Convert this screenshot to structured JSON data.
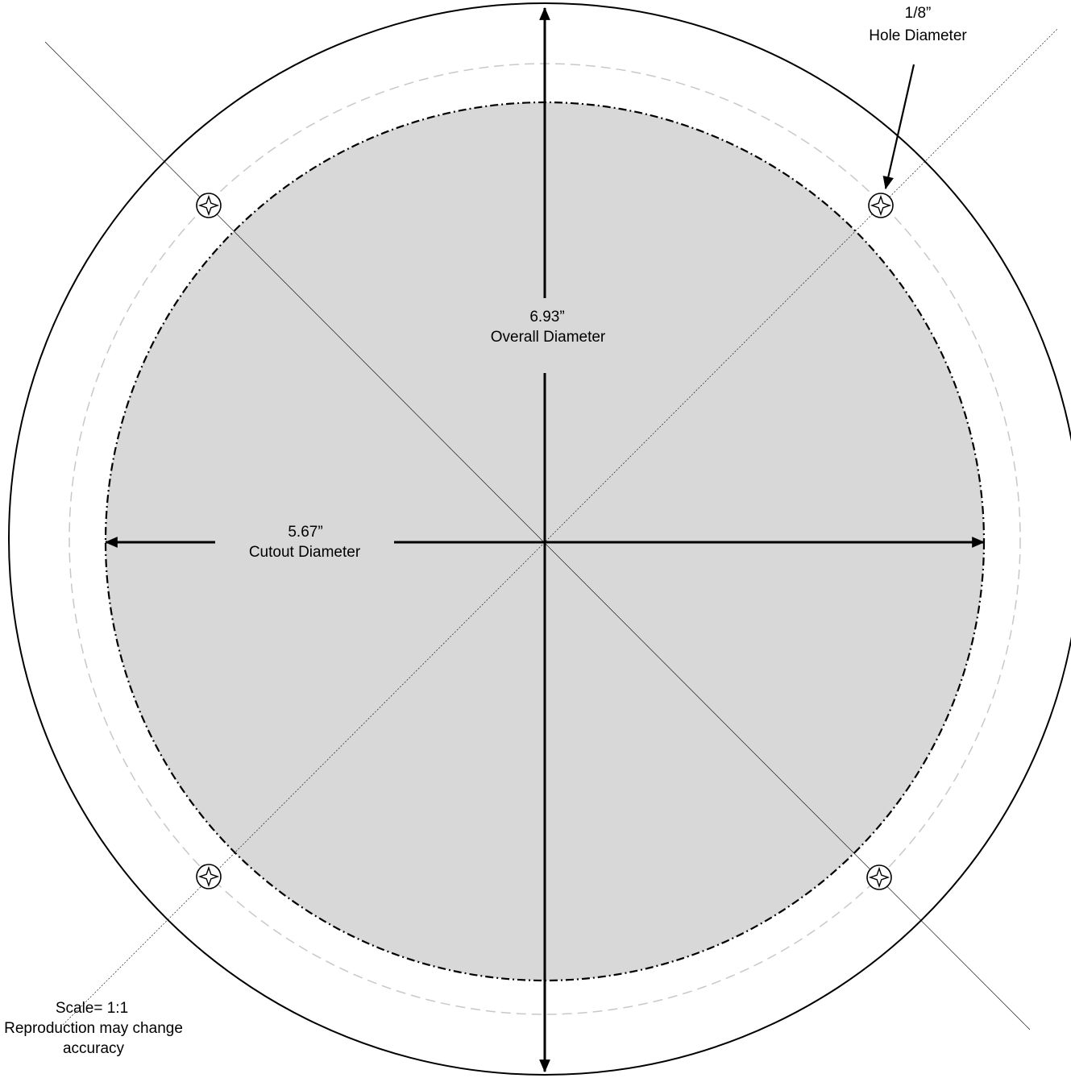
{
  "labels": {
    "overall_value": "6.93”",
    "overall_caption": "Overall Diameter",
    "cutout_value": "5.67”",
    "cutout_caption": "Cutout Diameter",
    "hole_value": "1/8”",
    "hole_caption": "Hole Diameter",
    "scale_line1": "Scale= 1:1",
    "scale_line2": "Reproduction may change",
    "scale_line3": "accuracy"
  },
  "icons": {
    "mounting_hole": "four-point-star-in-circle"
  },
  "colors": {
    "cutout_fill": "#d8d8d8",
    "outline": "#000000",
    "bolt_circle": "#c8c8c8",
    "background": "#ffffff"
  }
}
